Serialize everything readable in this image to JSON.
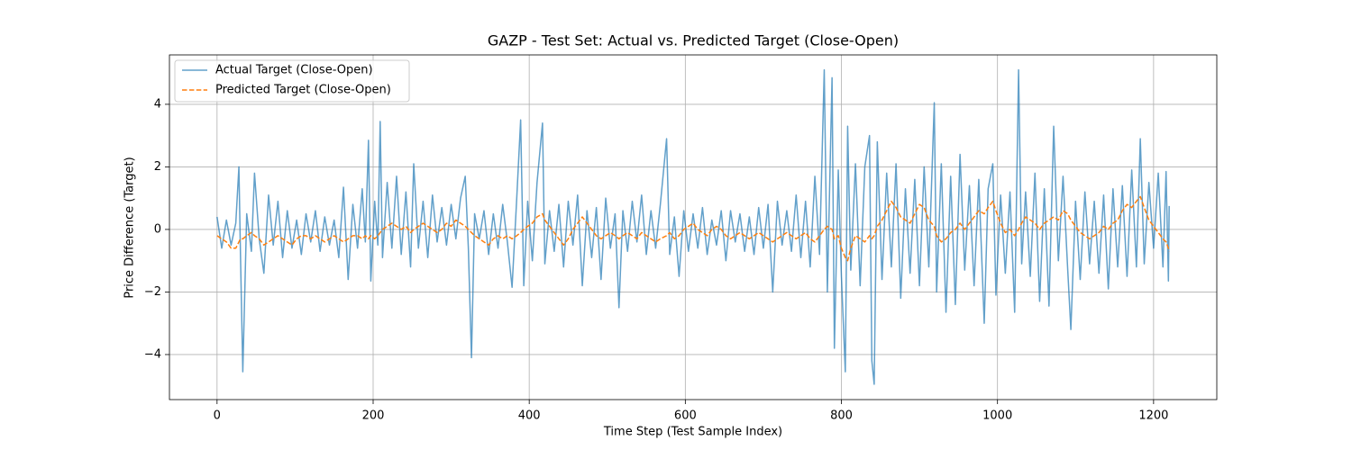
{
  "chart_data": {
    "type": "line",
    "title": "GAZP - Test Set: Actual vs. Predicted Target (Close-Open)",
    "xlabel": "Time Step (Test Sample Index)",
    "ylabel": "Price Difference (Target)",
    "x": [
      0,
      6,
      12,
      18,
      24,
      28,
      30,
      33,
      38,
      44,
      48,
      54,
      60,
      66,
      72,
      78,
      84,
      90,
      96,
      102,
      108,
      114,
      120,
      126,
      132,
      138,
      144,
      150,
      156,
      162,
      168,
      174,
      180,
      186,
      190,
      194,
      197,
      202,
      206,
      209,
      212,
      218,
      224,
      230,
      236,
      242,
      248,
      252,
      258,
      264,
      270,
      276,
      282,
      288,
      294,
      300,
      306,
      312,
      318,
      322,
      326,
      330,
      336,
      342,
      348,
      354,
      360,
      366,
      372,
      378,
      384,
      389,
      393,
      398,
      404,
      410,
      417,
      420,
      426,
      432,
      438,
      444,
      450,
      456,
      462,
      468,
      474,
      480,
      486,
      492,
      498,
      504,
      510,
      515,
      520,
      526,
      532,
      538,
      544,
      550,
      556,
      562,
      568,
      576,
      580,
      586,
      592,
      598,
      604,
      610,
      616,
      622,
      628,
      634,
      640,
      646,
      652,
      658,
      664,
      670,
      676,
      682,
      688,
      694,
      700,
      706,
      712,
      718,
      724,
      730,
      736,
      742,
      748,
      754,
      760,
      766,
      772,
      778,
      782,
      788,
      791,
      796,
      800,
      805,
      808,
      812,
      818,
      824,
      830,
      836,
      839,
      842,
      846,
      852,
      858,
      864,
      870,
      876,
      882,
      888,
      894,
      900,
      906,
      912,
      919,
      922,
      928,
      934,
      940,
      946,
      952,
      958,
      964,
      970,
      976,
      983,
      988,
      994,
      998,
      1004,
      1010,
      1016,
      1022,
      1027,
      1031,
      1036,
      1042,
      1048,
      1054,
      1060,
      1066,
      1072,
      1078,
      1084,
      1090,
      1094,
      1100,
      1106,
      1112,
      1118,
      1124,
      1130,
      1136,
      1142,
      1148,
      1154,
      1160,
      1166,
      1172,
      1178,
      1183,
      1188,
      1194,
      1200,
      1206,
      1212,
      1216,
      1219,
      1220
    ],
    "series": [
      {
        "name": "Actual Target (Close-Open)",
        "color": "#1f77b4",
        "opacity": 0.7,
        "dashed": false,
        "values": [
          0.4,
          -0.6,
          0.3,
          -0.5,
          0.2,
          2.0,
          -0.8,
          -4.55,
          0.5,
          -0.7,
          1.8,
          -0.3,
          -1.4,
          1.1,
          -0.5,
          0.9,
          -0.9,
          0.6,
          -0.6,
          0.3,
          -0.8,
          0.5,
          -0.4,
          0.6,
          -0.7,
          0.4,
          -0.5,
          0.3,
          -0.9,
          1.35,
          -1.6,
          0.8,
          -0.6,
          1.3,
          -0.4,
          2.85,
          -1.65,
          0.9,
          -0.5,
          3.45,
          -0.9,
          1.5,
          -0.6,
          1.7,
          -0.8,
          1.2,
          -1.2,
          2.1,
          -0.6,
          0.9,
          -0.9,
          1.1,
          -0.4,
          0.7,
          -0.5,
          0.8,
          -0.3,
          1.0,
          1.7,
          -0.6,
          -4.1,
          0.5,
          -0.3,
          0.6,
          -0.8,
          0.5,
          -0.6,
          0.8,
          -0.4,
          -1.85,
          1.0,
          3.5,
          -1.8,
          0.9,
          -1.0,
          1.5,
          3.4,
          -1.1,
          0.6,
          -0.7,
          0.8,
          -1.2,
          0.9,
          -0.5,
          1.1,
          -1.8,
          0.6,
          -0.9,
          0.7,
          -1.6,
          1.0,
          -0.6,
          0.5,
          -2.5,
          0.6,
          -0.7,
          0.9,
          -0.4,
          1.1,
          -0.8,
          0.6,
          -0.6,
          0.8,
          2.9,
          -0.8,
          0.4,
          -1.5,
          0.6,
          -0.7,
          0.5,
          -0.6,
          0.7,
          -0.8,
          0.3,
          -0.5,
          0.6,
          -1.0,
          0.6,
          -0.4,
          0.5,
          -0.7,
          0.4,
          -0.8,
          0.7,
          -0.6,
          0.8,
          -2.0,
          0.9,
          -0.5,
          0.6,
          -0.7,
          1.1,
          -0.9,
          0.9,
          -1.2,
          1.7,
          -0.8,
          5.1,
          -2.0,
          4.85,
          -3.8,
          1.9,
          -1.5,
          -4.55,
          3.3,
          -1.3,
          2.1,
          -1.8,
          2.0,
          3.0,
          -4.2,
          -4.95,
          2.8,
          -1.6,
          1.8,
          -1.2,
          2.1,
          -2.2,
          1.3,
          -1.4,
          1.6,
          -1.8,
          2.0,
          -1.2,
          4.05,
          -2.0,
          2.1,
          -2.65,
          1.7,
          -2.4,
          2.4,
          -1.3,
          1.4,
          -1.8,
          1.6,
          -3.0,
          1.3,
          2.1,
          -2.1,
          1.1,
          -1.4,
          1.2,
          -2.65,
          5.1,
          -1.1,
          1.2,
          -1.5,
          1.8,
          -2.3,
          1.3,
          -2.45,
          3.3,
          -1.0,
          1.7,
          -1.3,
          -3.2,
          0.9,
          -1.6,
          1.2,
          -1.1,
          0.9,
          -1.4,
          1.1,
          -1.9,
          1.3,
          -1.2,
          1.4,
          -1.5,
          1.9,
          -1.2,
          2.9,
          -1.1,
          1.5,
          -0.6,
          1.8,
          -1.2,
          1.85,
          -1.65,
          0.75
        ]
      },
      {
        "name": "Predicted Target (Close-Open)",
        "color": "#ff7f0e",
        "opacity": 1,
        "dashed": true,
        "values": [
          -0.2,
          -0.3,
          -0.4,
          -0.6,
          -0.6,
          -0.4,
          -0.3,
          -0.3,
          -0.2,
          -0.1,
          -0.2,
          -0.3,
          -0.5,
          -0.4,
          -0.3,
          -0.2,
          -0.3,
          -0.4,
          -0.5,
          -0.3,
          -0.2,
          -0.2,
          -0.3,
          -0.2,
          -0.3,
          -0.4,
          -0.3,
          -0.2,
          -0.3,
          -0.4,
          -0.3,
          -0.2,
          -0.2,
          -0.3,
          -0.2,
          -0.3,
          -0.2,
          -0.3,
          -0.2,
          -0.1,
          0.0,
          0.1,
          0.2,
          0.1,
          0.0,
          0.1,
          -0.1,
          0.0,
          0.1,
          0.2,
          0.1,
          0.0,
          -0.1,
          0.0,
          0.2,
          0.1,
          0.3,
          0.2,
          0.1,
          0.0,
          -0.1,
          -0.2,
          -0.3,
          -0.4,
          -0.5,
          -0.3,
          -0.2,
          -0.3,
          -0.2,
          -0.3,
          -0.2,
          -0.1,
          0.0,
          0.1,
          0.2,
          0.4,
          0.5,
          0.3,
          0.1,
          -0.1,
          -0.3,
          -0.5,
          -0.3,
          0.0,
          0.2,
          0.4,
          0.2,
          0.0,
          -0.2,
          -0.3,
          -0.2,
          -0.1,
          -0.2,
          -0.3,
          -0.2,
          -0.1,
          -0.2,
          -0.3,
          -0.1,
          -0.2,
          -0.3,
          -0.4,
          -0.3,
          -0.2,
          -0.1,
          -0.3,
          -0.2,
          0.0,
          0.1,
          0.2,
          0.0,
          -0.1,
          -0.2,
          0.0,
          0.1,
          0.0,
          -0.2,
          -0.3,
          -0.2,
          -0.1,
          -0.2,
          -0.3,
          -0.2,
          -0.1,
          -0.2,
          -0.3,
          -0.4,
          -0.3,
          -0.2,
          -0.1,
          -0.2,
          -0.3,
          -0.2,
          -0.1,
          -0.3,
          -0.4,
          -0.2,
          0.0,
          0.1,
          0.0,
          -0.3,
          -0.2,
          -0.6,
          -0.9,
          -1.0,
          -0.6,
          -0.2,
          -0.3,
          -0.4,
          -0.2,
          -0.3,
          -0.2,
          0.1,
          0.3,
          0.6,
          0.9,
          0.7,
          0.4,
          0.3,
          0.2,
          0.5,
          0.8,
          0.7,
          0.3,
          0.1,
          -0.2,
          -0.4,
          -0.3,
          -0.1,
          0.0,
          0.2,
          0.0,
          0.2,
          0.4,
          0.6,
          0.5,
          0.7,
          0.9,
          0.6,
          0.2,
          -0.1,
          0.0,
          -0.2,
          0.0,
          0.2,
          0.4,
          0.3,
          0.2,
          0.0,
          0.2,
          0.3,
          0.4,
          0.3,
          0.6,
          0.5,
          0.3,
          0.1,
          -0.1,
          -0.2,
          -0.3,
          -0.2,
          -0.1,
          0.1,
          0.0,
          0.2,
          0.3,
          0.6,
          0.8,
          0.7,
          0.9,
          1.05,
          0.7,
          0.3,
          0.1,
          -0.1,
          -0.3,
          -0.4,
          -0.6,
          -0.7
        ]
      }
    ],
    "xlim": [
      -61,
      1281
    ],
    "xticks": [
      0,
      200,
      400,
      600,
      800,
      1000,
      1200
    ],
    "ylim": [
      -5.44,
      5.58
    ],
    "yticks": [
      {
        "value": -4,
        "label": "−4"
      },
      {
        "value": -2,
        "label": "−2"
      },
      0,
      2,
      4
    ],
    "grid": true,
    "legend": "upper left"
  }
}
